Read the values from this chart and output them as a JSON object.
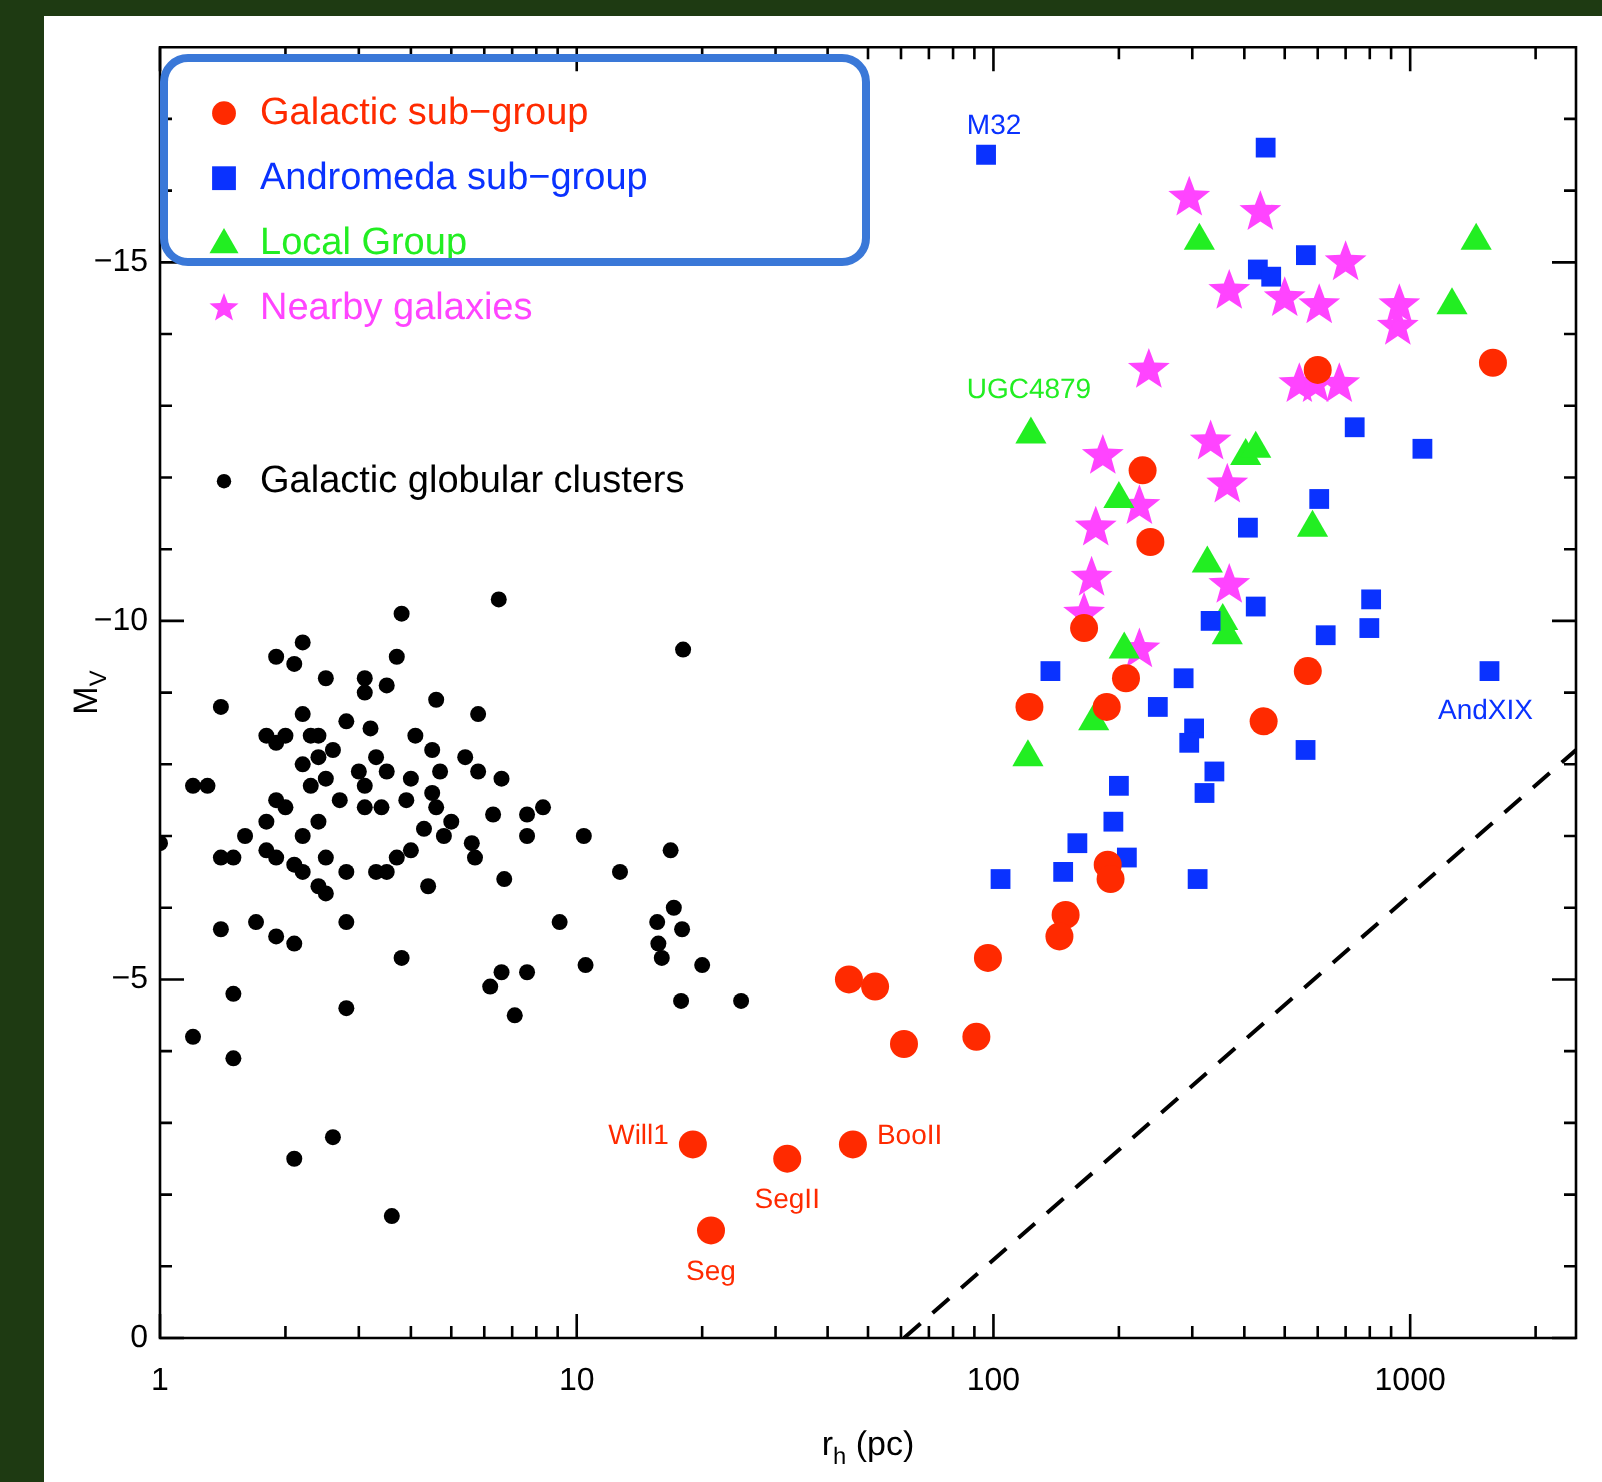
{
  "chart_data": {
    "type": "scatter",
    "xlabel": "r$_{h}$ (pc)",
    "ylabel": "M$_{V}$",
    "log": "x",
    "xlim": [
      1,
      2500
    ],
    "ylim": [
      0,
      -18
    ],
    "xticks": [
      1,
      {
        "value": 2,
        "label": null
      },
      {
        "value": 3,
        "label": null
      },
      {
        "value": 4,
        "label": null
      },
      {
        "value": 5,
        "label": null
      },
      {
        "value": 6,
        "label": null
      },
      {
        "value": 7,
        "label": null
      },
      {
        "value": 8,
        "label": null
      },
      {
        "value": 9,
        "label": null
      },
      10,
      {
        "value": 20,
        "label": null
      },
      {
        "value": 30,
        "label": null
      },
      {
        "value": 40,
        "label": null
      },
      {
        "value": 50,
        "label": null
      },
      {
        "value": 60,
        "label": null
      },
      {
        "value": 70,
        "label": null
      },
      {
        "value": 80,
        "label": null
      },
      {
        "value": 90,
        "label": null
      },
      100,
      {
        "value": 200,
        "label": null
      },
      {
        "value": 300,
        "label": null
      },
      {
        "value": 400,
        "label": null
      },
      {
        "value": 500,
        "label": null
      },
      {
        "value": 600,
        "label": null
      },
      {
        "value": 700,
        "label": null
      },
      {
        "value": 800,
        "label": null
      },
      {
        "value": 900,
        "label": null
      },
      1000,
      {
        "value": 2000,
        "label": null
      }
    ],
    "yticks": [
      0,
      {
        "value": -1,
        "label": null
      },
      {
        "value": -2,
        "label": null
      },
      {
        "value": -3,
        "label": null
      },
      {
        "value": -4,
        "label": null
      },
      {
        "value": -5,
        "label": "−5"
      },
      {
        "value": -6,
        "label": null
      },
      {
        "value": -7,
        "label": null
      },
      {
        "value": -8,
        "label": null
      },
      {
        "value": -9,
        "label": null
      },
      {
        "value": -10,
        "label": "−10"
      },
      {
        "value": -11,
        "label": null
      },
      {
        "value": -12,
        "label": null
      },
      {
        "value": -13,
        "label": null
      },
      {
        "value": -14,
        "label": null
      },
      {
        "value": -15,
        "label": "−15"
      },
      {
        "value": -16,
        "label": null
      },
      {
        "value": -17,
        "label": null
      }
    ],
    "legend": "top left",
    "series": [
      {
        "name": "Galactic sub−group",
        "color": "#ff2a00",
        "marker": "circle",
        "x": [
          19,
          32,
          46,
          21,
          45,
          52,
          61,
          91,
          97,
          228,
          238,
          165,
          208,
          122,
          187,
          568,
          445,
          188,
          191,
          149,
          144,
          600,
          1580
        ],
        "values": [
          -2.7,
          -2.5,
          -2.7,
          -1.5,
          -5.0,
          -4.9,
          -4.1,
          -4.2,
          -5.3,
          -12.1,
          -11.1,
          -9.9,
          -9.2,
          -8.8,
          -8.8,
          -9.3,
          -8.6,
          -6.6,
          -6.4,
          -5.9,
          -5.6,
          -13.5,
          -13.6
        ]
      },
      {
        "name": "Andromeda sub−group",
        "color": "#0a32ff",
        "marker": "square",
        "x": [
          96,
          450,
          431,
          464,
          562,
          736,
          1070,
          605,
          408,
          426,
          332,
          806,
          798,
          627,
          1550,
          137,
          286,
          248,
          303,
          295,
          561,
          339,
          321,
          200,
          194,
          159,
          209,
          147,
          104,
          309
        ],
        "values": [
          -16.5,
          -16.6,
          -14.9,
          -14.8,
          -15.1,
          -12.7,
          -12.4,
          -11.7,
          -11.3,
          -10.2,
          -10.0,
          -10.3,
          -9.9,
          -9.8,
          -9.3,
          -9.3,
          -9.2,
          -8.8,
          -8.5,
          -8.3,
          -8.2,
          -7.9,
          -7.6,
          -7.7,
          -7.2,
          -6.9,
          -6.7,
          -6.5,
          -6.4,
          -6.4
        ]
      },
      {
        "name": "Local Group",
        "color": "#22ee22",
        "marker": "triangle",
        "x": [
          312,
          1440,
          1260,
          123,
          403,
          426,
          200,
          583,
          326,
          355,
          364,
          206,
          174,
          121
        ],
        "values": [
          -15.3,
          -15.3,
          -14.4,
          -12.6,
          -12.3,
          -12.4,
          -11.7,
          -11.3,
          -10.8,
          -10.0,
          -9.8,
          -9.6,
          -8.6,
          -8.1
        ]
      },
      {
        "name": "Nearby galaxies",
        "color": "#ff44ff",
        "marker": "star",
        "x": [
          295,
          437,
          700,
          368,
          500,
          605,
          942,
          934,
          236,
          542,
          593,
          676,
          332,
          183,
          364,
          224,
          176,
          172,
          368,
          165,
          224
        ],
        "values": [
          -15.9,
          -15.7,
          -15.0,
          -14.6,
          -14.5,
          -14.4,
          -14.4,
          -14.1,
          -13.5,
          -13.3,
          -13.3,
          -13.3,
          -12.5,
          -12.3,
          -11.9,
          -11.6,
          -11.3,
          -10.6,
          -10.5,
          -10.1,
          -9.6
        ]
      },
      {
        "name": "Galactic globular clusters",
        "color": "#000000",
        "marker": "circle",
        "x": [
          6.5,
          3.8,
          18,
          2.2,
          1.9,
          2.1,
          3.7,
          2.5,
          3.1,
          3.5,
          3.1,
          1.4,
          4.6,
          5.8,
          2.2,
          2.8,
          3.2,
          1.8,
          2.0,
          1.9,
          2.3,
          2.4,
          2.6,
          4.1,
          4.5,
          5.4,
          5.8,
          6.6,
          2.2,
          2.4,
          3.3,
          3.5,
          3.0,
          4.0,
          4.7,
          1.2,
          1.3,
          1.9,
          2.3,
          2.5,
          2.7,
          3.1,
          3.9,
          4.5,
          2.0,
          2.4,
          3.1,
          3.4,
          4.6,
          5.0,
          6.3,
          7.6,
          8.3,
          1.8,
          1.6,
          2.2,
          4.3,
          4.8,
          5.6,
          5.7,
          7.6,
          10.4,
          1.0,
          1.8,
          1.9,
          1.4,
          1.5,
          2.5,
          3.7,
          4.0,
          2.1,
          2.2,
          2.8,
          3.3,
          3.5,
          6.7,
          12.7,
          16.8,
          2.4,
          2.5,
          4.4,
          17.1,
          1.7,
          1.4,
          1.9,
          2.1,
          2.8,
          9.1,
          15.6,
          17.9,
          15.7,
          16.0,
          3.8,
          10.5,
          20,
          6.2,
          6.6,
          7.6,
          1.5,
          2.8,
          7.1,
          17.8,
          24.8,
          1.2,
          1.5,
          2.1,
          2.6,
          3.6
        ],
        "values": [
          -10.3,
          -10.1,
          -9.6,
          -9.7,
          -9.5,
          -9.4,
          -9.5,
          -9.2,
          -9.2,
          -9.1,
          -9.0,
          -8.8,
          -8.9,
          -8.7,
          -8.7,
          -8.6,
          -8.5,
          -8.4,
          -8.4,
          -8.3,
          -8.4,
          -8.4,
          -8.2,
          -8.4,
          -8.2,
          -8.1,
          -7.9,
          -7.8,
          -8.0,
          -8.1,
          -8.1,
          -7.9,
          -7.9,
          -7.8,
          -7.9,
          -7.7,
          -7.7,
          -7.5,
          -7.7,
          -7.8,
          -7.5,
          -7.7,
          -7.5,
          -7.6,
          -7.4,
          -7.2,
          -7.4,
          -7.4,
          -7.4,
          -7.2,
          -7.3,
          -7.3,
          -7.4,
          -7.2,
          -7.0,
          -7.0,
          -7.1,
          -7.0,
          -6.9,
          -6.7,
          -7.0,
          -7.0,
          -6.9,
          -6.8,
          -6.7,
          -6.7,
          -6.7,
          -6.7,
          -6.7,
          -6.8,
          -6.6,
          -6.5,
          -6.5,
          -6.5,
          -6.5,
          -6.4,
          -6.5,
          -6.8,
          -6.3,
          -6.2,
          -6.3,
          -6.0,
          -5.8,
          -5.7,
          -5.6,
          -5.5,
          -5.8,
          -5.8,
          -5.8,
          -5.7,
          -5.5,
          -5.3,
          -5.3,
          -5.2,
          -5.2,
          -4.9,
          -5.1,
          -5.1,
          -4.8,
          -4.6,
          -4.5,
          -4.7,
          -4.7,
          -4.2,
          -3.9,
          -2.5,
          -2.8,
          -1.7
        ]
      },
      {
        "type": "line",
        "color": "#000000",
        "marker": "none",
        "line_style": "dashed",
        "x": [
          61,
          2500
        ],
        "values": [
          0,
          -8.2
        ]
      }
    ],
    "annotations": [
      {
        "text": "M32",
        "x": 96,
        "y": -16.5
      },
      {
        "text": "AndXIX",
        "x": 1550,
        "y": -9.3
      },
      {
        "text": "UGC4879",
        "x": 123,
        "y": -12.6
      },
      {
        "text": "Will1",
        "x": 19,
        "y": -2.7
      },
      {
        "text": "SegII",
        "x": 32,
        "y": -2.5
      },
      {
        "text": "BooII",
        "x": 46,
        "y": -2.7
      },
      {
        "text": "Seg",
        "x": 21,
        "y": -1.5
      }
    ]
  }
}
